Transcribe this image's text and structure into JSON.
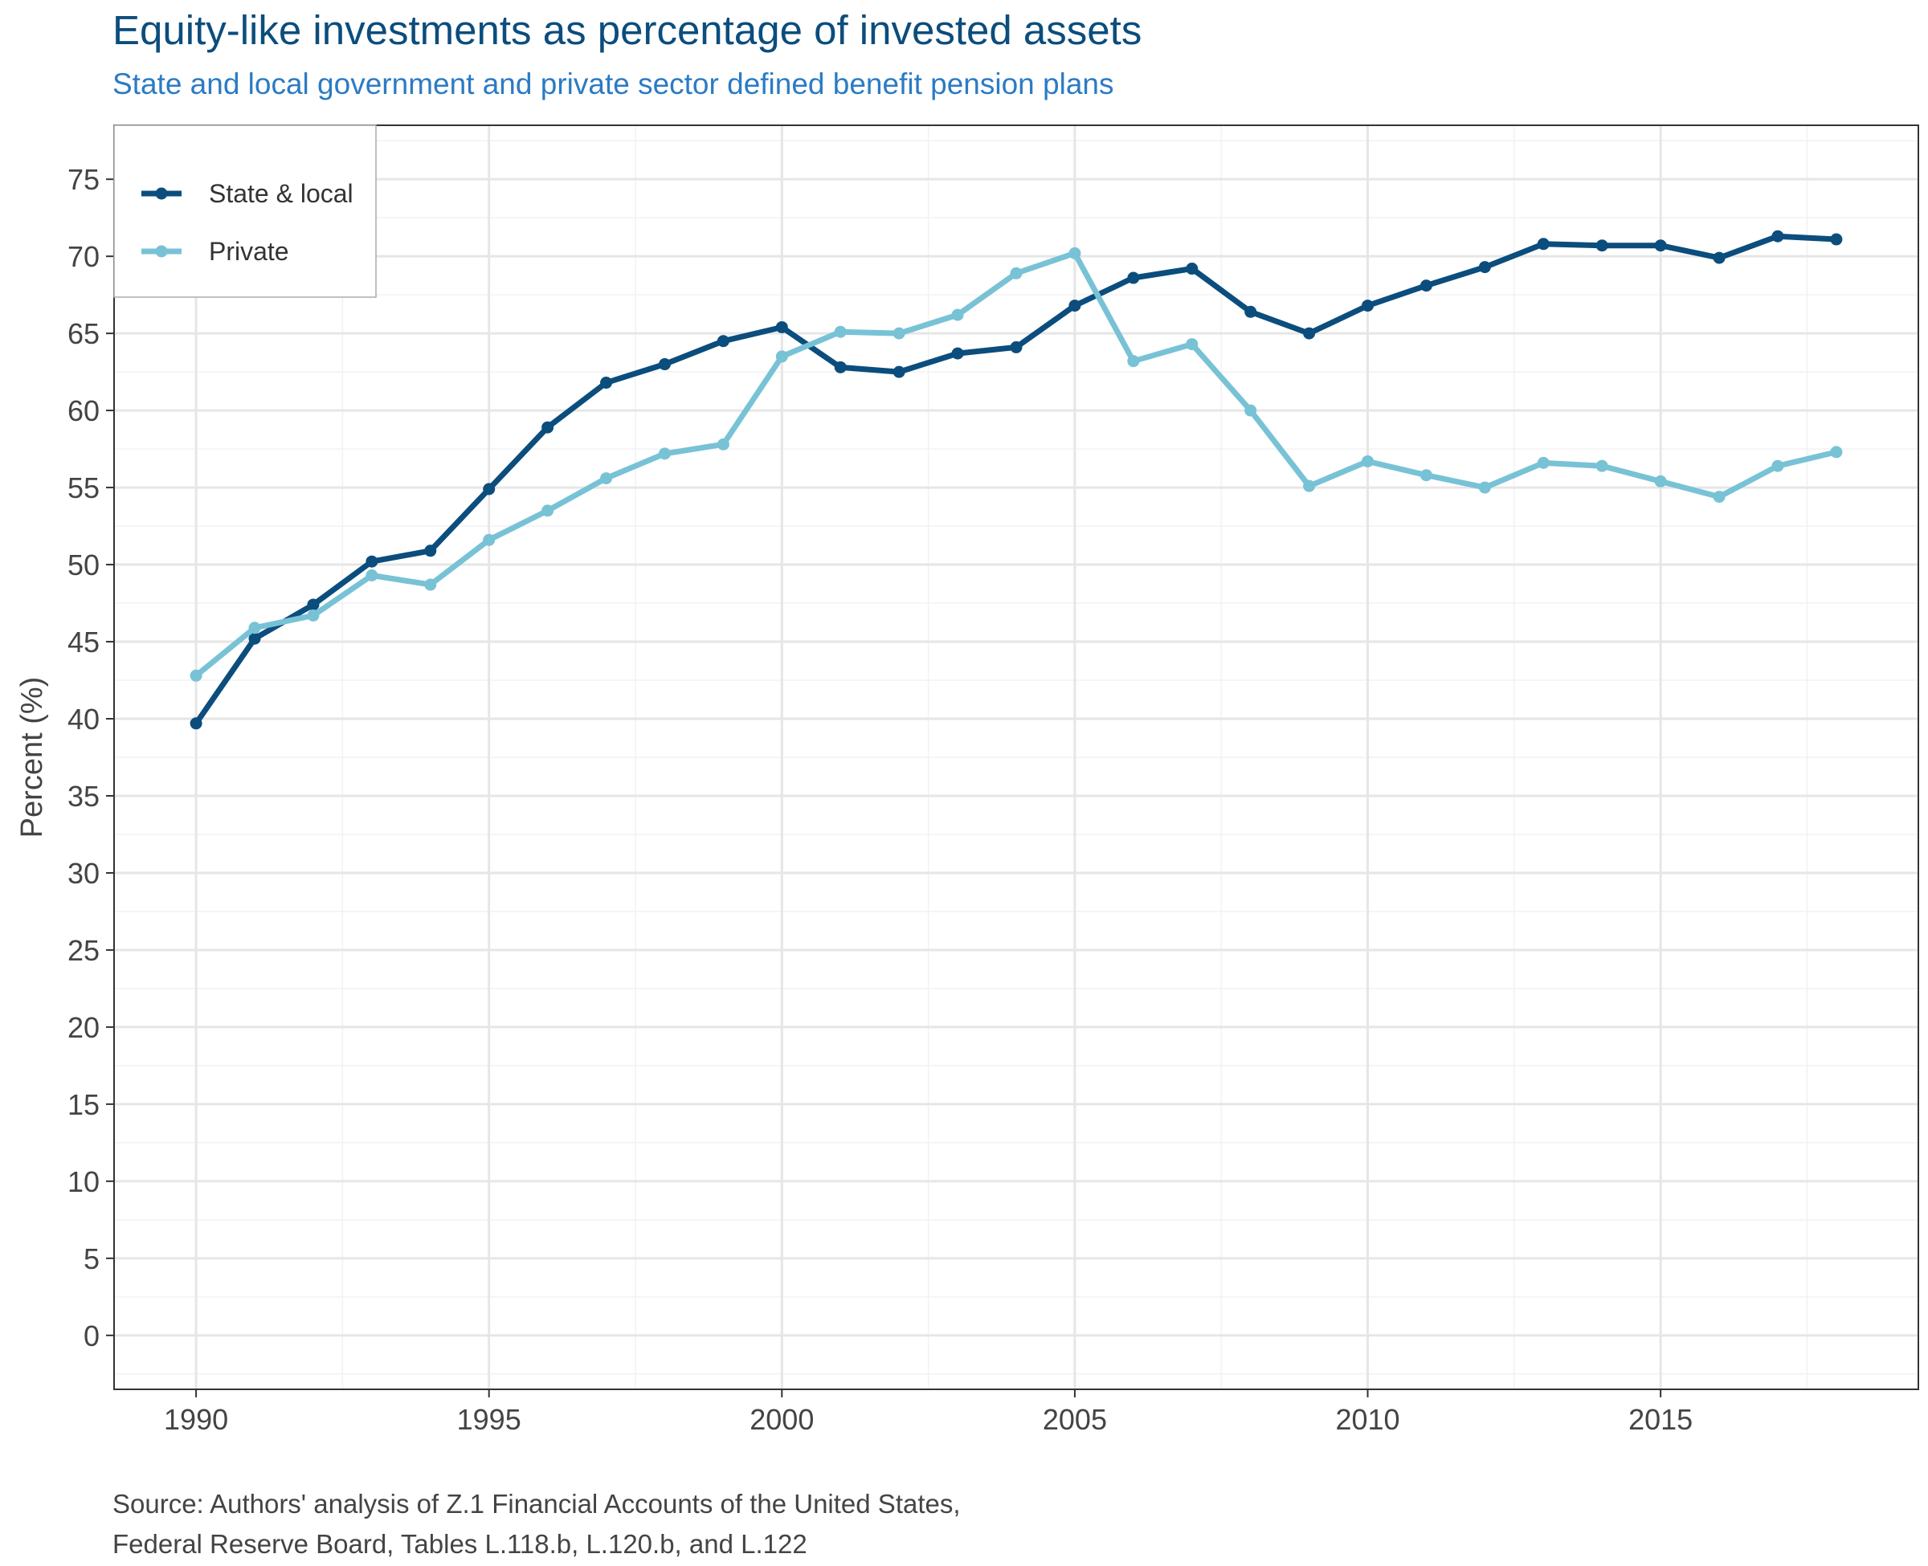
{
  "title": "Equity-like investments as percentage of invested assets",
  "subtitle": "State and local government and private sector defined benefit pension plans",
  "source": [
    "Source: Authors' analysis of Z.1 Financial Accounts of the United States,",
    "Federal Reserve Board, Tables L.118.b, L.120.b, and L.122"
  ],
  "chart_data": {
    "type": "line",
    "title": "Equity-like investments as percentage of invested assets",
    "subtitle": "State and local government and private sector defined benefit pension plans",
    "xlabel": "",
    "ylabel": "Percent (%)",
    "xlim": [
      1988.6,
      2019.4
    ],
    "ylim": [
      -3.5,
      78.5
    ],
    "x_ticks": [
      1990,
      1995,
      2000,
      2005,
      2010,
      2015
    ],
    "y_ticks": [
      0,
      5,
      10,
      15,
      20,
      25,
      30,
      35,
      40,
      45,
      50,
      55,
      60,
      65,
      70,
      75
    ],
    "grid": true,
    "legend_position": "top-left",
    "x": [
      1990,
      1991,
      1992,
      1993,
      1994,
      1995,
      1996,
      1997,
      1998,
      1999,
      2000,
      2001,
      2002,
      2003,
      2004,
      2005,
      2006,
      2007,
      2008,
      2009,
      2010,
      2011,
      2012,
      2013,
      2014,
      2015,
      2016,
      2017,
      2018
    ],
    "series": [
      {
        "name": "State & local",
        "color": "#0b4d7d",
        "values": [
          39.7,
          45.2,
          47.4,
          50.2,
          50.9,
          54.9,
          58.9,
          61.8,
          63.0,
          64.5,
          65.4,
          62.8,
          62.5,
          63.7,
          64.1,
          66.8,
          68.6,
          69.2,
          66.4,
          65.0,
          66.8,
          68.1,
          69.3,
          70.8,
          70.7,
          70.7,
          69.9,
          71.3,
          71.1
        ]
      },
      {
        "name": "Private",
        "color": "#78c2d6",
        "values": [
          42.8,
          45.9,
          46.7,
          49.3,
          48.7,
          51.6,
          53.5,
          55.6,
          57.2,
          57.8,
          63.5,
          65.1,
          65.0,
          66.2,
          68.9,
          70.2,
          63.2,
          64.3,
          60.0,
          55.1,
          56.7,
          55.8,
          55.0,
          56.6,
          56.4,
          55.4,
          54.4,
          56.4,
          57.3
        ]
      }
    ]
  }
}
